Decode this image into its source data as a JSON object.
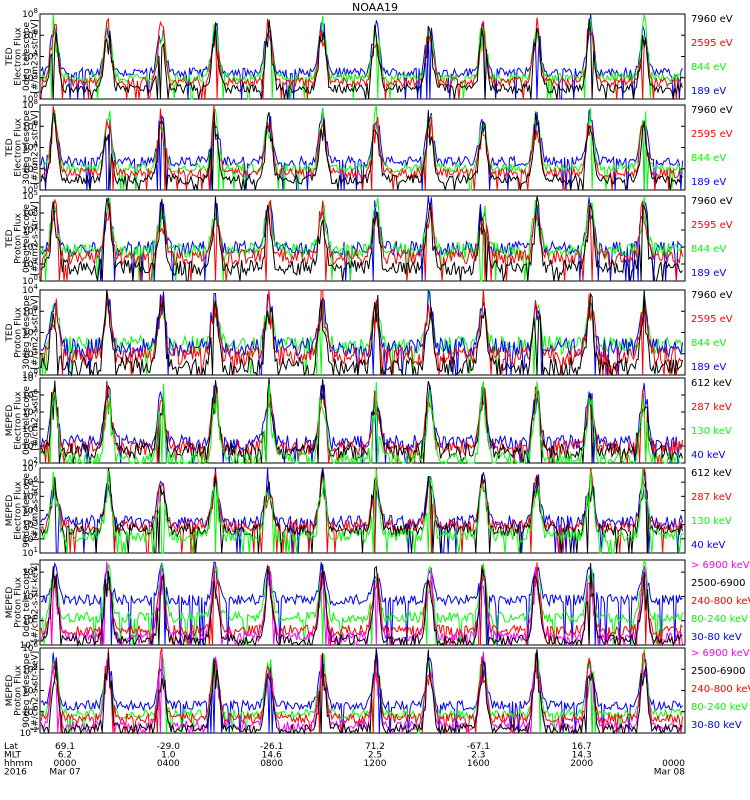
{
  "title": "NOAA19",
  "colors": {
    "black": "#000000",
    "red": "#ff0000",
    "green": "#00ff00",
    "blue": "#0000ff",
    "magenta": "#ff00ff"
  },
  "chart_data": [
    {
      "type": "line",
      "instrument": "TED",
      "ylabel": [
        "TED",
        "Electron Flux",
        "0deg telescope",
        "[#/cm2-s-str-eV]"
      ],
      "ylog": true,
      "ylim_exp": [
        0,
        8
      ],
      "tick_exps": [
        0,
        2,
        4,
        6,
        8
      ],
      "series": [
        {
          "name": "7960 eV",
          "color": "black",
          "level": 1
        },
        {
          "name": "2595 eV",
          "color": "red",
          "level": 1.6
        },
        {
          "name": "844 eV",
          "color": "green",
          "level": 2
        },
        {
          "name": "189 eV",
          "color": "blue",
          "level": 2.5
        }
      ]
    },
    {
      "type": "line",
      "instrument": "TED",
      "ylabel": [
        "TED",
        "Electron Flux",
        "30deg telescope",
        "[#/cm2-s-str-eV]"
      ],
      "ylog": true,
      "ylim_exp": [
        0,
        8
      ],
      "tick_exps": [
        0,
        2,
        4,
        6,
        8
      ],
      "series": [
        {
          "name": "7960 eV",
          "color": "black",
          "level": 1
        },
        {
          "name": "2595 eV",
          "color": "red",
          "level": 1.6
        },
        {
          "name": "844 eV",
          "color": "green",
          "level": 2.1
        },
        {
          "name": "189 eV",
          "color": "blue",
          "level": 2.7
        }
      ]
    },
    {
      "type": "line",
      "instrument": "TED",
      "ylabel": [
        "TED",
        "Proton Flux",
        "0deg telescope",
        "[#/cm2-s-str-eV]"
      ],
      "ylog": true,
      "ylim_exp": [
        0,
        5
      ],
      "tick_exps": [
        0,
        1,
        2,
        3,
        4,
        5
      ],
      "series": [
        {
          "name": "7960 eV",
          "color": "black",
          "level": 0.8
        },
        {
          "name": "2595 eV",
          "color": "red",
          "level": 1.4
        },
        {
          "name": "844 eV",
          "color": "green",
          "level": 1.8
        },
        {
          "name": "189 eV",
          "color": "blue",
          "level": 1.9
        }
      ]
    },
    {
      "type": "line",
      "instrument": "TED",
      "ylabel": [
        "TED",
        "Proton Flux",
        "30deg telescope",
        "[#/cm2-s-str-eV]"
      ],
      "ylog": true,
      "ylim_exp": [
        0,
        4
      ],
      "tick_exps": [
        0,
        1,
        2,
        3,
        4
      ],
      "series": [
        {
          "name": "7960 eV",
          "color": "black",
          "level": 0.4
        },
        {
          "name": "2595 eV",
          "color": "red",
          "level": 0.9
        },
        {
          "name": "844 eV",
          "color": "green",
          "level": 1.4
        },
        {
          "name": "189 eV",
          "color": "blue",
          "level": 1.3
        }
      ]
    },
    {
      "type": "line",
      "instrument": "MEPED",
      "ylabel": [
        "MEPED",
        "Electron Flux",
        "0deg telescope",
        "[#/cm2-s-str]"
      ],
      "ylog": true,
      "ylim_exp": [
        2,
        7
      ],
      "tick_exps": [
        2,
        3,
        4,
        5,
        6,
        7
      ],
      "series": [
        {
          "name": "612 keV",
          "color": "black",
          "level": 2.7
        },
        {
          "name": "287 keV",
          "color": "red",
          "level": 2.9
        },
        {
          "name": "130 keV",
          "color": "green",
          "level": 2.2
        },
        {
          "name": "40 keV",
          "color": "blue",
          "level": 3.2
        }
      ]
    },
    {
      "type": "line",
      "instrument": "MEPED",
      "ylabel": [
        "MEPED",
        "Electron Flux",
        "90deg telescope",
        "[#/cm2-s-str]"
      ],
      "ylog": true,
      "ylim_exp": [
        1,
        7
      ],
      "tick_exps": [
        1,
        2,
        3,
        4,
        5,
        6,
        7
      ],
      "series": [
        {
          "name": "612 keV",
          "color": "black",
          "level": 2.6
        },
        {
          "name": "287 keV",
          "color": "red",
          "level": 2.9
        },
        {
          "name": "130 keV",
          "color": "green",
          "level": 2.2
        },
        {
          "name": "40 keV",
          "color": "blue",
          "level": 3.2
        }
      ]
    },
    {
      "type": "line",
      "instrument": "MEPED",
      "ylabel": [
        "MEPED",
        "Proton Flux",
        "0deg telescope",
        "[#/cm2-s-str-keV]"
      ],
      "ylog": true,
      "ylim_exp": [
        -2,
        5
      ],
      "tick_exps": [
        -2,
        0,
        2,
        4
      ],
      "series": [
        {
          "name": "> 6900 keV",
          "color": "magenta",
          "level": -1.3
        },
        {
          "name": "2500-6900",
          "color": "black",
          "level": -1.6
        },
        {
          "name": "240-800 keV",
          "color": "red",
          "level": -0.8
        },
        {
          "name": "80-240 keV",
          "color": "green",
          "level": 0.3
        },
        {
          "name": "30-80 keV",
          "color": "blue",
          "level": 1.7
        }
      ]
    },
    {
      "type": "line",
      "instrument": "MEPED",
      "ylabel": [
        "MEPED",
        "Proton Flux",
        "90deg telescope",
        "[#/cm2-s-str-keV]"
      ],
      "ylog": true,
      "ylim_exp": [
        -2,
        6
      ],
      "tick_exps": [
        -2,
        0,
        2,
        4,
        6
      ],
      "series": [
        {
          "name": "> 6900 keV",
          "color": "magenta",
          "level": -1.3
        },
        {
          "name": "2500-6900",
          "color": "black",
          "level": -1.6
        },
        {
          "name": "240-800 keV",
          "color": "red",
          "level": -0.6
        },
        {
          "name": "80-240 keV",
          "color": "green",
          "level": -0.2
        },
        {
          "name": "30-80 keV",
          "color": "blue",
          "level": 0.6
        }
      ]
    }
  ],
  "x_axis": {
    "row_labels": [
      "Lat",
      "MLT",
      "hhmm",
      "2016"
    ],
    "ticks": [
      {
        "time": "0000",
        "lat": "69.1",
        "mlt": "6.2",
        "date": "Mar 07"
      },
      {
        "time": "0400",
        "lat": "-29.0",
        "mlt": "1.0",
        "date": ""
      },
      {
        "time": "0800",
        "lat": "-26.1",
        "mlt": "14.6",
        "date": ""
      },
      {
        "time": "1200",
        "lat": "71.2",
        "mlt": "2.5",
        "date": ""
      },
      {
        "time": "1600",
        "lat": "-67.1",
        "mlt": "2.3",
        "date": ""
      },
      {
        "time": "2000",
        "lat": "16.7",
        "mlt": "14.3",
        "date": ""
      },
      {
        "time": "0000",
        "lat": "",
        "mlt": "",
        "date": "Mar 08"
      }
    ]
  }
}
